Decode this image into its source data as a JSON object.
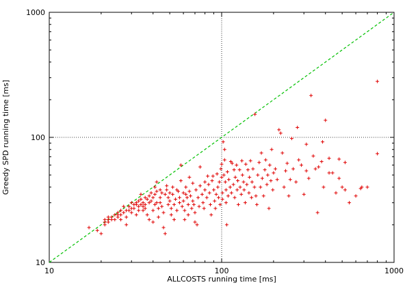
{
  "chart_data": {
    "type": "scatter",
    "title": "",
    "xlabel": "ALLCOSTS running time [ms]",
    "ylabel": "Greedy SPD running time [ms]",
    "xscale": "log",
    "yscale": "log",
    "xlim": [
      10,
      1000
    ],
    "ylim": [
      10,
      1000
    ],
    "xticks": [
      "10",
      "100",
      "1000"
    ],
    "yticks": [
      "10",
      "100",
      "1000"
    ],
    "grid": "dotted lines at 100 on both axes",
    "point_color": "#e00000",
    "diagonal_color": "#00c000",
    "diagonal": "y = x",
    "points": [
      [
        17,
        19
      ],
      [
        19,
        18
      ],
      [
        20,
        17
      ],
      [
        21,
        20
      ],
      [
        21,
        21
      ],
      [
        21,
        22
      ],
      [
        22,
        21
      ],
      [
        22,
        22
      ],
      [
        22,
        23
      ],
      [
        23,
        22
      ],
      [
        23,
        23
      ],
      [
        24,
        24
      ],
      [
        24,
        22
      ],
      [
        25,
        24
      ],
      [
        25,
        25
      ],
      [
        25,
        23
      ],
      [
        26,
        24
      ],
      [
        26,
        26
      ],
      [
        26,
        22
      ],
      [
        27,
        25
      ],
      [
        27,
        28
      ],
      [
        28,
        26
      ],
      [
        28,
        23
      ],
      [
        28,
        20
      ],
      [
        29,
        26
      ],
      [
        29,
        28
      ],
      [
        30,
        27
      ],
      [
        30,
        30
      ],
      [
        30,
        25
      ],
      [
        31,
        27
      ],
      [
        31,
        29
      ],
      [
        32,
        29
      ],
      [
        32,
        30
      ],
      [
        32,
        24
      ],
      [
        33,
        28
      ],
      [
        33,
        31
      ],
      [
        33,
        26
      ],
      [
        34,
        29
      ],
      [
        34,
        32
      ],
      [
        34,
        35
      ],
      [
        35,
        30
      ],
      [
        35,
        28
      ],
      [
        35,
        26
      ],
      [
        36,
        33
      ],
      [
        36,
        29
      ],
      [
        36,
        27
      ],
      [
        37,
        32
      ],
      [
        37,
        24
      ],
      [
        38,
        30
      ],
      [
        38,
        34
      ],
      [
        38,
        22
      ],
      [
        39,
        36
      ],
      [
        39,
        31
      ],
      [
        40,
        33
      ],
      [
        40,
        26
      ],
      [
        40,
        21
      ],
      [
        41,
        40
      ],
      [
        41,
        35
      ],
      [
        41,
        29
      ],
      [
        42,
        44
      ],
      [
        42,
        37
      ],
      [
        42,
        30
      ],
      [
        43,
        27
      ],
      [
        43,
        23
      ],
      [
        44,
        38
      ],
      [
        44,
        33
      ],
      [
        44,
        30
      ],
      [
        45,
        36
      ],
      [
        45,
        28
      ],
      [
        46,
        25
      ],
      [
        46,
        19
      ],
      [
        47,
        17
      ],
      [
        47,
        35
      ],
      [
        48,
        38
      ],
      [
        48,
        41
      ],
      [
        49,
        33
      ],
      [
        49,
        29
      ],
      [
        50,
        36
      ],
      [
        50,
        31
      ],
      [
        51,
        27
      ],
      [
        51,
        24
      ],
      [
        52,
        40
      ],
      [
        52,
        35
      ],
      [
        53,
        29
      ],
      [
        53,
        22
      ],
      [
        54,
        32
      ],
      [
        55,
        38
      ],
      [
        55,
        26
      ],
      [
        56,
        37
      ],
      [
        57,
        33
      ],
      [
        57,
        30
      ],
      [
        58,
        60
      ],
      [
        58,
        45
      ],
      [
        59,
        28
      ],
      [
        60,
        36
      ],
      [
        60,
        31
      ],
      [
        61,
        26
      ],
      [
        61,
        22
      ],
      [
        62,
        40
      ],
      [
        62,
        35
      ],
      [
        63,
        33
      ],
      [
        64,
        29
      ],
      [
        64,
        24
      ],
      [
        65,
        48
      ],
      [
        65,
        37
      ],
      [
        66,
        34
      ],
      [
        67,
        27
      ],
      [
        68,
        43
      ],
      [
        68,
        31
      ],
      [
        69,
        29
      ],
      [
        70,
        25
      ],
      [
        70,
        21
      ],
      [
        71,
        38
      ],
      [
        72,
        20
      ],
      [
        73,
        33
      ],
      [
        74,
        28
      ],
      [
        75,
        41
      ],
      [
        75,
        58
      ],
      [
        77,
        35
      ],
      [
        78,
        30
      ],
      [
        79,
        27
      ],
      [
        80,
        44
      ],
      [
        80,
        38
      ],
      [
        82,
        33
      ],
      [
        83,
        49
      ],
      [
        84,
        42
      ],
      [
        85,
        36
      ],
      [
        86,
        29
      ],
      [
        87,
        24
      ],
      [
        88,
        45
      ],
      [
        89,
        49
      ],
      [
        90,
        38
      ],
      [
        91,
        31
      ],
      [
        92,
        27
      ],
      [
        93,
        35
      ],
      [
        94,
        51
      ],
      [
        95,
        40
      ],
      [
        96,
        33
      ],
      [
        97,
        44
      ],
      [
        98,
        29
      ],
      [
        99,
        56
      ],
      [
        100,
        61
      ],
      [
        100,
        48
      ],
      [
        101,
        36
      ],
      [
        101,
        32
      ],
      [
        102,
        92
      ],
      [
        103,
        50
      ],
      [
        104,
        80
      ],
      [
        104,
        66
      ],
      [
        105,
        44
      ],
      [
        106,
        38
      ],
      [
        106,
        30
      ],
      [
        107,
        20
      ],
      [
        108,
        53
      ],
      [
        109,
        34
      ],
      [
        110,
        46
      ],
      [
        112,
        40
      ],
      [
        113,
        64
      ],
      [
        114,
        36
      ],
      [
        115,
        62
      ],
      [
        117,
        42
      ],
      [
        118,
        55
      ],
      [
        119,
        33
      ],
      [
        120,
        48
      ],
      [
        122,
        60
      ],
      [
        123,
        38
      ],
      [
        124,
        45
      ],
      [
        125,
        29
      ],
      [
        127,
        55
      ],
      [
        128,
        40
      ],
      [
        130,
        35
      ],
      [
        131,
        65
      ],
      [
        132,
        50
      ],
      [
        134,
        44
      ],
      [
        135,
        38
      ],
      [
        137,
        30
      ],
      [
        138,
        61
      ],
      [
        140,
        42
      ],
      [
        142,
        55
      ],
      [
        144,
        36
      ],
      [
        145,
        48
      ],
      [
        147,
        65
      ],
      [
        149,
        33
      ],
      [
        150,
        44
      ],
      [
        152,
        56
      ],
      [
        155,
        40
      ],
      [
        156,
        153
      ],
      [
        158,
        34
      ],
      [
        160,
        29
      ],
      [
        162,
        50
      ],
      [
        165,
        63
      ],
      [
        168,
        40
      ],
      [
        170,
        75
      ],
      [
        172,
        47
      ],
      [
        175,
        34
      ],
      [
        178,
        55
      ],
      [
        180,
        66
      ],
      [
        183,
        42
      ],
      [
        185,
        50
      ],
      [
        188,
        27
      ],
      [
        190,
        60
      ],
      [
        193,
        45
      ],
      [
        195,
        80
      ],
      [
        198,
        38
      ],
      [
        200,
        52
      ],
      [
        205,
        56
      ],
      [
        210,
        46
      ],
      [
        215,
        115
      ],
      [
        220,
        108
      ],
      [
        225,
        75
      ],
      [
        230,
        40
      ],
      [
        235,
        54
      ],
      [
        240,
        62
      ],
      [
        245,
        34
      ],
      [
        250,
        46
      ],
      [
        255,
        98
      ],
      [
        260,
        56
      ],
      [
        270,
        44
      ],
      [
        280,
        66
      ],
      [
        290,
        60
      ],
      [
        300,
        35
      ],
      [
        310,
        54
      ],
      [
        320,
        47
      ],
      [
        330,
        216
      ],
      [
        340,
        71
      ],
      [
        350,
        56
      ],
      [
        360,
        25
      ],
      [
        380,
        64
      ],
      [
        390,
        40
      ],
      [
        400,
        137
      ],
      [
        420,
        68
      ],
      [
        440,
        52
      ],
      [
        460,
        36
      ],
      [
        480,
        47
      ],
      [
        500,
        40
      ],
      [
        520,
        63
      ],
      [
        550,
        30
      ],
      [
        600,
        34
      ],
      [
        650,
        40
      ],
      [
        700,
        40
      ],
      [
        800,
        74
      ],
      [
        800,
        280
      ],
      [
        420,
        52
      ],
      [
        365,
        58
      ],
      [
        310,
        88
      ],
      [
        275,
        120
      ],
      [
        385,
        92
      ],
      [
        480,
        67
      ],
      [
        640,
        39
      ],
      [
        520,
        38
      ]
    ]
  }
}
